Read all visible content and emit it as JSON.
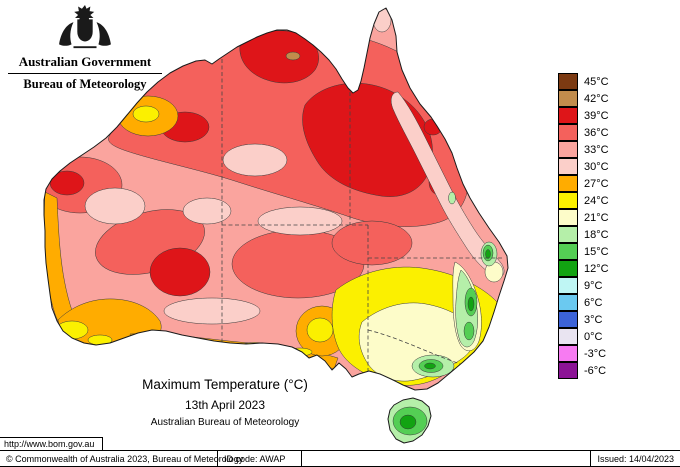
{
  "header": {
    "government": "Australian Government",
    "bureau": "Bureau of Meteorology"
  },
  "title_block": {
    "title": "Maximum Temperature (°C)",
    "date": "13th April 2023",
    "org": "Australian Bureau of Meteorology"
  },
  "legend": {
    "entries": [
      {
        "label": "45°C",
        "color": "#7C3A12"
      },
      {
        "label": "42°C",
        "color": "#C18C4C"
      },
      {
        "label": "39°C",
        "color": "#DE1519"
      },
      {
        "label": "36°C",
        "color": "#F4615C"
      },
      {
        "label": "33°C",
        "color": "#FAA49E"
      },
      {
        "label": "30°C",
        "color": "#FBCFC9"
      },
      {
        "label": "27°C",
        "color": "#FFAC00"
      },
      {
        "label": "24°C",
        "color": "#FBF000"
      },
      {
        "label": "21°C",
        "color": "#FDFCC9"
      },
      {
        "label": "18°C",
        "color": "#B5EFA9"
      },
      {
        "label": "15°C",
        "color": "#54CE54"
      },
      {
        "label": "12°C",
        "color": "#12A312"
      },
      {
        "label": "9°C",
        "color": "#BFF6F4"
      },
      {
        "label": "6°C",
        "color": "#6BC9F0"
      },
      {
        "label": "3°C",
        "color": "#3C63D8"
      },
      {
        "label": "0°C",
        "color": "#E9E4F1"
      },
      {
        "label": "-3°C",
        "color": "#F77BF2"
      },
      {
        "label": "-6°C",
        "color": "#8C1396"
      }
    ]
  },
  "footer": {
    "url": "http://www.bom.gov.au",
    "copyright": "© Commonwealth of Australia 2023, Bureau of Meteorology",
    "id_code": "ID code: AWAP",
    "issued": "Issued: 14/04/2023"
  }
}
